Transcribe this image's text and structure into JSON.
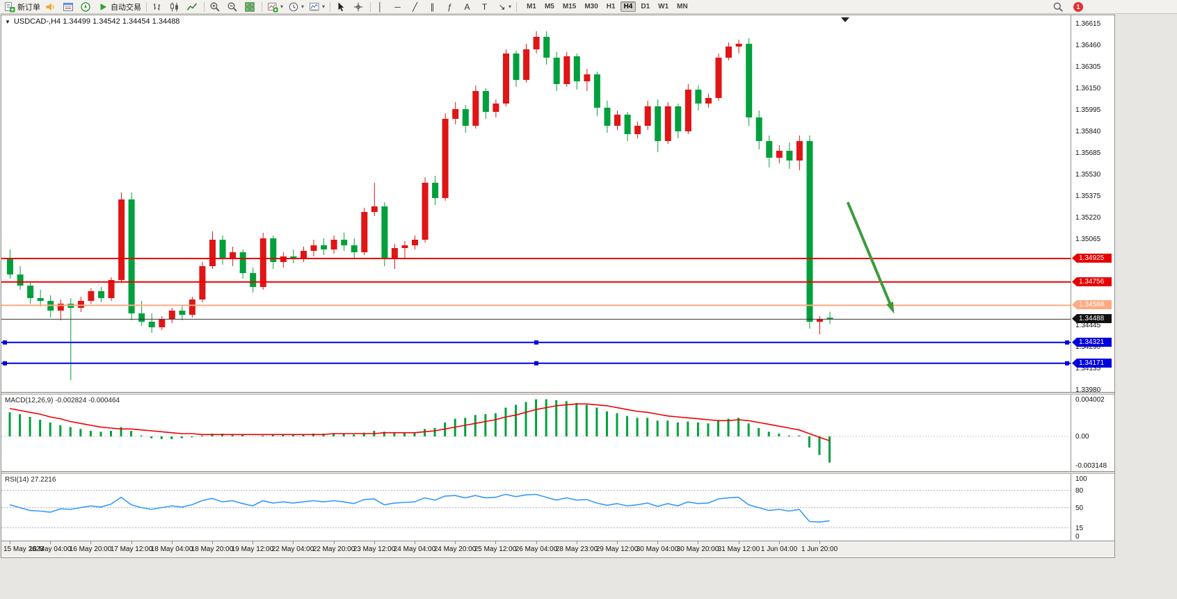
{
  "toolbar": {
    "items": [
      {
        "name": "new-order-button",
        "icon": "new-order-icon",
        "label": "新订单"
      },
      {
        "name": "sound-alert-button",
        "icon": "sound-icon"
      },
      {
        "name": "market-watch-button",
        "icon": "market-watch-icon"
      },
      {
        "name": "navigator-button",
        "icon": "navigator-icon"
      },
      {
        "name": "autotrading-button",
        "icon": "autotrading-icon",
        "label": "自动交易"
      },
      {
        "sep": true
      },
      {
        "name": "bar-chart-button",
        "icon": "bar-chart-icon"
      },
      {
        "name": "candlestick-chart-button",
        "icon": "candlestick-icon"
      },
      {
        "name": "line-chart-button",
        "icon": "line-chart-icon"
      },
      {
        "sep": true
      },
      {
        "name": "zoom-in-button",
        "icon": "zoom-in-icon"
      },
      {
        "name": "zoom-out-button",
        "icon": "zoom-out-icon"
      },
      {
        "name": "tile-windows-button",
        "icon": "tile-windows-icon"
      },
      {
        "sep": true
      },
      {
        "name": "new-chart-button",
        "icon": "new-chart-icon",
        "dropdown": true
      },
      {
        "name": "profiles-button",
        "icon": "clock-icon",
        "dropdown": true
      },
      {
        "name": "indicators-button",
        "icon": "chart-settings-icon",
        "dropdown": true
      },
      {
        "sep": true
      },
      {
        "name": "cursor-button",
        "icon": "cursor-icon"
      },
      {
        "name": "crosshair-button",
        "icon": "crosshair-icon"
      },
      {
        "sep": true
      },
      {
        "name": "vertical-line-button",
        "glyph": "│"
      },
      {
        "name": "horizontal-line-button",
        "glyph": "─"
      },
      {
        "name": "trendline-button",
        "glyph": "╱"
      },
      {
        "name": "equidistant-channel-button",
        "glyph": "∥"
      },
      {
        "name": "fibonacci-button",
        "glyph": "ƒ"
      },
      {
        "name": "text-button",
        "glyph": "A"
      },
      {
        "name": "text-label-button",
        "glyph": "T"
      },
      {
        "name": "arrows-button",
        "glyph": "↘",
        "dropdown": true
      },
      {
        "sep": true
      }
    ],
    "timeframes": [
      {
        "name": "timeframe-m1",
        "label": "M1"
      },
      {
        "name": "timeframe-m5",
        "label": "M5"
      },
      {
        "name": "timeframe-m15",
        "label": "M15"
      },
      {
        "name": "timeframe-m30",
        "label": "M30"
      },
      {
        "name": "timeframe-h1",
        "label": "H1"
      },
      {
        "name": "timeframe-h4",
        "label": "H4",
        "active": true
      },
      {
        "name": "timeframe-d1",
        "label": "D1"
      },
      {
        "name": "timeframe-w1",
        "label": "W1"
      },
      {
        "name": "timeframe-mn",
        "label": "MN"
      }
    ],
    "badge": "1"
  },
  "chart": {
    "title": "USDCAD-,H4 1.34499 1.34542 1.34454 1.34488",
    "symbol": "USDCAD-",
    "period": "H4",
    "open": "1.34499",
    "high": "1.34542",
    "low": "1.34454",
    "close": "1.34488",
    "collapse_arrow": "▼"
  },
  "chart_data": {
    "type": "candlestick",
    "price_axis": {
      "max": 1.36615,
      "min": 1.3398,
      "tick_step": 0.00155,
      "labels": [
        "1.36615",
        "1.36460",
        "1.36305",
        "1.36150",
        "1.35995",
        "1.35840",
        "1.35685",
        "1.35530",
        "1.35375",
        "1.35220",
        "1.35065",
        "1.34445",
        "1.34290",
        "1.34135",
        "1.33980"
      ]
    },
    "colors": {
      "bull": "#e01515",
      "bear": "#00a03c",
      "macd_histogram": "#00a03c",
      "macd_signal": "#ee0000",
      "rsi_line": "#3399ff",
      "bid_line": "#333333"
    },
    "candles": [
      [
        1.3492,
        1.3499,
        1.3478,
        1.3481
      ],
      [
        1.3481,
        1.3487,
        1.347,
        1.3473
      ],
      [
        1.3473,
        1.3476,
        1.346,
        1.3464
      ],
      [
        1.3464,
        1.347,
        1.3458,
        1.3462
      ],
      [
        1.3462,
        1.3466,
        1.345,
        1.3455
      ],
      [
        1.3455,
        1.3463,
        1.3448,
        1.346
      ],
      [
        1.346,
        1.3464,
        1.3405,
        1.3457
      ],
      [
        1.3457,
        1.3465,
        1.3454,
        1.3462
      ],
      [
        1.3462,
        1.3471,
        1.346,
        1.3469
      ],
      [
        1.3469,
        1.3472,
        1.3461,
        1.3464
      ],
      [
        1.3464,
        1.3479,
        1.3462,
        1.3477
      ],
      [
        1.3477,
        1.354,
        1.3475,
        1.3535
      ],
      [
        1.3535,
        1.354,
        1.3448,
        1.3453
      ],
      [
        1.3453,
        1.3462,
        1.3444,
        1.3447
      ],
      [
        1.3447,
        1.3453,
        1.3439,
        1.3443
      ],
      [
        1.3443,
        1.3451,
        1.3441,
        1.3449
      ],
      [
        1.3449,
        1.3457,
        1.3446,
        1.3455
      ],
      [
        1.3455,
        1.3459,
        1.3448,
        1.3452
      ],
      [
        1.3452,
        1.3465,
        1.345,
        1.3463
      ],
      [
        1.3463,
        1.349,
        1.3461,
        1.3487
      ],
      [
        1.3487,
        1.3512,
        1.3485,
        1.3506
      ],
      [
        1.3506,
        1.3509,
        1.3488,
        1.3492
      ],
      [
        1.3492,
        1.3501,
        1.3487,
        1.3497
      ],
      [
        1.3497,
        1.3499,
        1.3478,
        1.3482
      ],
      [
        1.3482,
        1.3486,
        1.3468,
        1.3472
      ],
      [
        1.3472,
        1.3511,
        1.347,
        1.3507
      ],
      [
        1.3507,
        1.3509,
        1.3485,
        1.349
      ],
      [
        1.349,
        1.3497,
        1.3486,
        1.3494
      ],
      [
        1.3494,
        1.3499,
        1.3489,
        1.3492
      ],
      [
        1.3492,
        1.3501,
        1.349,
        1.3498
      ],
      [
        1.3498,
        1.3506,
        1.3494,
        1.3502
      ],
      [
        1.3502,
        1.3507,
        1.3495,
        1.3499
      ],
      [
        1.3499,
        1.3509,
        1.3496,
        1.3506
      ],
      [
        1.3506,
        1.3511,
        1.3498,
        1.3502
      ],
      [
        1.3502,
        1.3507,
        1.3493,
        1.3497
      ],
      [
        1.3497,
        1.3529,
        1.3495,
        1.3526
      ],
      [
        1.3526,
        1.3547,
        1.3523,
        1.353
      ],
      [
        1.353,
        1.3533,
        1.3487,
        1.3493
      ],
      [
        1.3493,
        1.3503,
        1.3485,
        1.35
      ],
      [
        1.35,
        1.3505,
        1.3493,
        1.3502
      ],
      [
        1.3502,
        1.3509,
        1.3499,
        1.3506
      ],
      [
        1.3506,
        1.3551,
        1.3504,
        1.3547
      ],
      [
        1.3547,
        1.3552,
        1.3531,
        1.3536
      ],
      [
        1.3536,
        1.3597,
        1.3534,
        1.3593
      ],
      [
        1.3593,
        1.3605,
        1.3589,
        1.36
      ],
      [
        1.36,
        1.3603,
        1.3583,
        1.3588
      ],
      [
        1.3588,
        1.3617,
        1.3586,
        1.3613
      ],
      [
        1.3613,
        1.3615,
        1.3593,
        1.3598
      ],
      [
        1.3598,
        1.3607,
        1.3594,
        1.3604
      ],
      [
        1.3604,
        1.3643,
        1.3602,
        1.364
      ],
      [
        1.364,
        1.3642,
        1.3616,
        1.3621
      ],
      [
        1.3621,
        1.3647,
        1.3619,
        1.3643
      ],
      [
        1.3643,
        1.3656,
        1.364,
        1.3652
      ],
      [
        1.3652,
        1.3656,
        1.3632,
        1.3637
      ],
      [
        1.3637,
        1.3641,
        1.3613,
        1.3618
      ],
      [
        1.3618,
        1.3641,
        1.3616,
        1.3638
      ],
      [
        1.3638,
        1.364,
        1.3614,
        1.362
      ],
      [
        1.362,
        1.3629,
        1.3613,
        1.3625
      ],
      [
        1.3625,
        1.3627,
        1.3595,
        1.3601
      ],
      [
        1.3601,
        1.3606,
        1.3583,
        1.3588
      ],
      [
        1.3588,
        1.3599,
        1.3585,
        1.3596
      ],
      [
        1.3596,
        1.3598,
        1.3577,
        1.3582
      ],
      [
        1.3582,
        1.3591,
        1.3579,
        1.3588
      ],
      [
        1.3588,
        1.3606,
        1.3585,
        1.3602
      ],
      [
        1.3602,
        1.3607,
        1.3569,
        1.3577
      ],
      [
        1.3577,
        1.3605,
        1.3575,
        1.3602
      ],
      [
        1.3602,
        1.3604,
        1.3579,
        1.3584
      ],
      [
        1.3584,
        1.3618,
        1.3582,
        1.3614
      ],
      [
        1.3614,
        1.3617,
        1.3599,
        1.3604
      ],
      [
        1.3604,
        1.3611,
        1.3601,
        1.3608
      ],
      [
        1.3608,
        1.364,
        1.3606,
        1.3637
      ],
      [
        1.3637,
        1.3648,
        1.3635,
        1.3645
      ],
      [
        1.3645,
        1.365,
        1.364,
        1.3647
      ],
      [
        1.3647,
        1.3651,
        1.3588,
        1.3594
      ],
      [
        1.3594,
        1.3599,
        1.3571,
        1.3577
      ],
      [
        1.3577,
        1.3581,
        1.3558,
        1.3565
      ],
      [
        1.3565,
        1.3574,
        1.3561,
        1.357
      ],
      [
        1.357,
        1.3576,
        1.3557,
        1.3563
      ],
      [
        1.3563,
        1.3581,
        1.3556,
        1.3577
      ],
      [
        1.3577,
        1.3581,
        1.3442,
        1.3447
      ],
      [
        1.3447,
        1.3451,
        1.3438,
        1.3449
      ],
      [
        1.34499,
        1.34542,
        1.34454,
        1.34488
      ]
    ],
    "time_labels": [
      {
        "bar": 0,
        "text": "15 May 2023"
      },
      {
        "bar": 4,
        "text": "16 May 04:00"
      },
      {
        "bar": 8,
        "text": "16 May 20:00"
      },
      {
        "bar": 12,
        "text": "17 May 12:00"
      },
      {
        "bar": 16,
        "text": "18 May 04:00"
      },
      {
        "bar": 20,
        "text": "18 May 20:00"
      },
      {
        "bar": 24,
        "text": "19 May 12:00"
      },
      {
        "bar": 28,
        "text": "22 May 04:00"
      },
      {
        "bar": 32,
        "text": "22 May 20:00"
      },
      {
        "bar": 36,
        "text": "23 May 12:00"
      },
      {
        "bar": 40,
        "text": "24 May 04:00"
      },
      {
        "bar": 44,
        "text": "24 May 20:00"
      },
      {
        "bar": 48,
        "text": "25 May 12:00"
      },
      {
        "bar": 52,
        "text": "26 May 04:00"
      },
      {
        "bar": 56,
        "text": "28 May 23:00"
      },
      {
        "bar": 60,
        "text": "29 May 12:00"
      },
      {
        "bar": 64,
        "text": "30 May 04:00"
      },
      {
        "bar": 68,
        "text": "30 May 20:00"
      },
      {
        "bar": 72,
        "text": "31 May 12:00"
      },
      {
        "bar": 76,
        "text": "1 Jun 04:00"
      },
      {
        "bar": 80,
        "text": "1 Jun 20:00"
      }
    ],
    "hlines": [
      {
        "price": 1.34925,
        "label": "1.34925",
        "color": "#e80000",
        "width": 2,
        "handles": false
      },
      {
        "price": 1.34756,
        "label": "1.34756",
        "color": "#e80000",
        "width": 2,
        "handles": false
      },
      {
        "price": 1.34588,
        "label": "1.34588",
        "color": "#ffaa80",
        "width": 2,
        "handles": false
      },
      {
        "price": 1.34321,
        "label": "1.34321",
        "color": "#0000dd",
        "width": 2,
        "handles": true
      },
      {
        "price": 1.34171,
        "label": "1.34171",
        "color": "#0000dd",
        "width": 2,
        "handles": true
      }
    ],
    "bid_line": {
      "price": 1.34488,
      "label": "1.34488"
    },
    "arrow": {
      "from_bar": 82.8,
      "from_price": 1.3533,
      "to_bar": 87.2,
      "to_price": 1.3456,
      "color": "#3c9b3c"
    },
    "macd": {
      "title": "MACD(12,26,9) -0.002824 -0.000464",
      "name": "MACD",
      "params": "12,26,9",
      "macd_value": -0.002824,
      "signal_value": -0.000464,
      "axis_labels": [
        "0.004002",
        "0.00",
        "-0.003148"
      ],
      "histogram": [
        0.0026,
        0.0024,
        0.0021,
        0.0018,
        0.0015,
        0.0012,
        0.001,
        0.0008,
        0.0006,
        0.0005,
        0.0006,
        0.001,
        0.0006,
        0.0001,
        -0.0002,
        -0.0003,
        -0.0003,
        -0.0002,
        -0.0001,
        0.0001,
        0.0003,
        0.0003,
        0.0002,
        0.0002,
        0.0,
        0.0001,
        0.0002,
        0.0002,
        0.0002,
        0.0002,
        0.0003,
        0.0003,
        0.0003,
        0.0003,
        0.0002,
        0.0004,
        0.0006,
        0.0005,
        0.0004,
        0.0004,
        0.0004,
        0.0008,
        0.0009,
        0.0015,
        0.0019,
        0.002,
        0.0023,
        0.0024,
        0.0025,
        0.0031,
        0.0034,
        0.0037,
        0.004,
        0.004,
        0.0039,
        0.0038,
        0.0036,
        0.0034,
        0.0031,
        0.0027,
        0.0025,
        0.0022,
        0.002,
        0.002,
        0.0017,
        0.0017,
        0.0015,
        0.0016,
        0.0015,
        0.0014,
        0.0017,
        0.0019,
        0.002,
        0.0014,
        0.0009,
        0.0005,
        0.0003,
        0.0001,
        0.0001,
        -0.0012,
        -0.002,
        -0.002824
      ],
      "signal": [
        0.003,
        0.0028,
        0.0026,
        0.0024,
        0.0021,
        0.0019,
        0.0016,
        0.0014,
        0.0012,
        0.001,
        0.0009,
        0.0008,
        0.0008,
        0.0007,
        0.0006,
        0.0005,
        0.0004,
        0.0003,
        0.0003,
        0.0002,
        0.0002,
        0.0002,
        0.0002,
        0.0002,
        0.0002,
        0.0002,
        0.0002,
        0.0002,
        0.0002,
        0.0002,
        0.0002,
        0.0002,
        0.0003,
        0.0003,
        0.0003,
        0.0003,
        0.0003,
        0.0004,
        0.0004,
        0.0004,
        0.0004,
        0.0005,
        0.0006,
        0.0008,
        0.001,
        0.0012,
        0.0014,
        0.0016,
        0.0018,
        0.0021,
        0.0023,
        0.0026,
        0.0029,
        0.0031,
        0.0033,
        0.0034,
        0.0035,
        0.0035,
        0.0034,
        0.0033,
        0.0031,
        0.0029,
        0.0027,
        0.0026,
        0.0024,
        0.0022,
        0.0021,
        0.002,
        0.0019,
        0.0018,
        0.0017,
        0.0017,
        0.0018,
        0.0017,
        0.0015,
        0.0013,
        0.0011,
        0.0009,
        0.0007,
        0.0003,
        -0.0001,
        -0.000464
      ]
    },
    "rsi": {
      "title": "RSI(14) 27.2216",
      "name": "RSI",
      "period": 14,
      "value": 27.2216,
      "axis_labels": [
        "100",
        "80",
        "50",
        "15",
        "0"
      ],
      "levels": [
        80,
        50,
        15
      ],
      "series": [
        55,
        50,
        45,
        44,
        42,
        48,
        47,
        50,
        53,
        51,
        56,
        68,
        55,
        50,
        47,
        50,
        53,
        51,
        55,
        62,
        66,
        60,
        62,
        57,
        53,
        62,
        58,
        60,
        58,
        60,
        62,
        60,
        62,
        60,
        57,
        64,
        65,
        55,
        58,
        59,
        60,
        67,
        63,
        70,
        71,
        67,
        71,
        67,
        68,
        73,
        69,
        72,
        73,
        68,
        63,
        67,
        63,
        64,
        58,
        54,
        57,
        53,
        55,
        58,
        52,
        57,
        53,
        60,
        57,
        58,
        65,
        67,
        68,
        55,
        50,
        45,
        47,
        44,
        47,
        26,
        25,
        27.22
      ]
    }
  }
}
